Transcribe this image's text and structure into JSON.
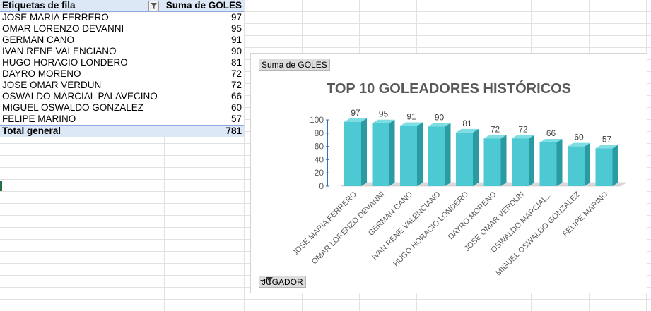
{
  "pivot": {
    "header_label": "Etiquetas de fila",
    "header_value": "Suma de GOLES",
    "rows": [
      {
        "name": "JOSE MARIA FERRERO",
        "value": "97"
      },
      {
        "name": "OMAR LORENZO DEVANNI",
        "value": "95"
      },
      {
        "name": "GERMAN CANO",
        "value": "91"
      },
      {
        "name": "IVAN RENE VALENCIANO",
        "value": "90"
      },
      {
        "name": "HUGO HORACIO LONDERO",
        "value": "81"
      },
      {
        "name": "DAYRO MORENO",
        "value": "72"
      },
      {
        "name": "JOSE OMAR VERDUN",
        "value": "72"
      },
      {
        "name": "OSWALDO MARCIAL PALAVECINO",
        "value": "66"
      },
      {
        "name": "MIGUEL OSWALDO GONZALEZ",
        "value": "60"
      },
      {
        "name": "FELIPE MARINO",
        "value": "57"
      }
    ],
    "total_label": "Total general",
    "total_value": "781"
  },
  "chart_buttons": {
    "value_field": "Suma de GOLES",
    "axis_field": "JUGADOR"
  },
  "chart_data": {
    "type": "bar",
    "title": "TOP 10 GOLEADORES HISTÓRICOS",
    "categories": [
      "JOSE MARIA FERRERO",
      "OMAR LORENZO DEVANNI",
      "GERMAN CANO",
      "IVAN RENE VALENCIANO",
      "HUGO HORACIO LONDERO",
      "DAYRO MORENO",
      "JOSE OMAR VERDUN",
      "OSWALDO MARCIAL...",
      "MIGUEL OSWALDO GONZALEZ",
      "FELIPE MARINO"
    ],
    "values": [
      97,
      95,
      91,
      90,
      81,
      72,
      72,
      66,
      60,
      57
    ],
    "yticks": [
      "0",
      "20",
      "40",
      "60",
      "80",
      "100"
    ],
    "ylim": [
      0,
      100
    ],
    "three_d": true,
    "grid": false,
    "bar_color": "#4cc9d3",
    "bar_side_color": "#2a9aa3",
    "bar_top_color": "#7fdde4"
  }
}
